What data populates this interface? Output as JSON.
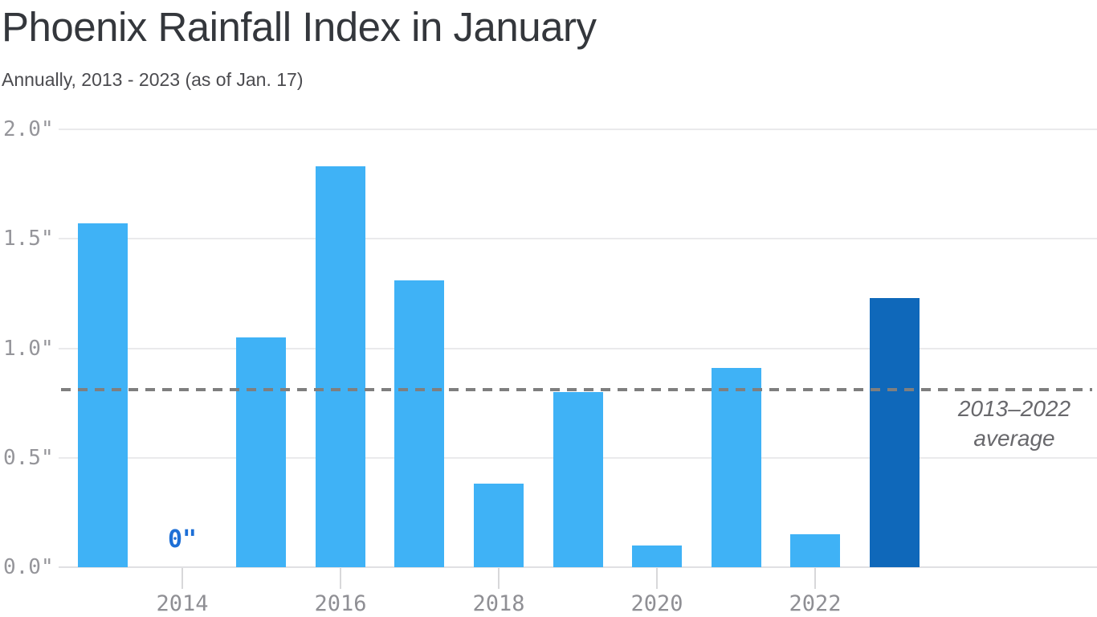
{
  "header": {
    "title": "Phoenix Rainfall Index in January",
    "subtitle": "Annually, 2013 - 2023 (as of Jan. 17)"
  },
  "colors": {
    "bar": "#3fb2f6",
    "bar_highlight": "#0f68ba",
    "reference_line": "#7f7f7f",
    "zero_annotation_text": "#1d6fd6",
    "gridline": "#eaeaec",
    "axis_text": "#95959a",
    "title_text": "#34373c",
    "subtitle_text": "#4b4b4f",
    "average_label_text": "#68686c"
  },
  "chart_data": {
    "type": "bar",
    "title": "Phoenix Rainfall Index in January",
    "subtitle": "Annually, 2013 - 2023 (as of Jan. 17)",
    "x": [
      2013,
      2014,
      2015,
      2016,
      2017,
      2018,
      2019,
      2020,
      2021,
      2022,
      2023
    ],
    "values": [
      1.57,
      0,
      1.05,
      1.83,
      1.31,
      0.38,
      0.8,
      0.1,
      0.91,
      0.15,
      1.23
    ],
    "unit": "inches",
    "highlight_year": 2023,
    "ylim": [
      0,
      2.0
    ],
    "ytick_values": [
      2.0,
      1.5,
      1.0,
      0.5,
      0.0
    ],
    "ytick_labels": [
      "2.0\"",
      "1.5\"",
      "1.0\"",
      "0.5\"",
      "0.0\""
    ],
    "xtick_years": [
      2014,
      2016,
      2018,
      2020,
      2022
    ],
    "xtick_labels": [
      "2014",
      "2016",
      "2018",
      "2020",
      "2022"
    ],
    "grid": true,
    "legend": false,
    "reference_line": {
      "value": 0.81,
      "style": "dashed",
      "label_line1": "2013–2022",
      "label_line2": "average"
    },
    "zero_annotation": {
      "year": 2014,
      "text": "0\""
    }
  }
}
